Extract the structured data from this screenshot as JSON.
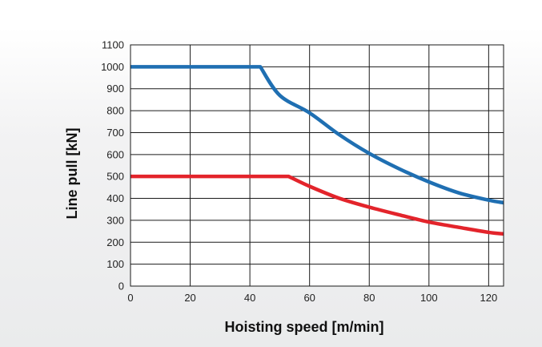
{
  "chart_data": {
    "type": "line",
    "title": "",
    "xlabel": "Hoisting speed [m/min]",
    "ylabel": "Line pull [kN]",
    "xlim": [
      0,
      125
    ],
    "ylim": [
      0,
      1100
    ],
    "x_ticks": [
      0,
      20,
      40,
      60,
      80,
      100,
      120
    ],
    "y_ticks": [
      0,
      100,
      200,
      300,
      400,
      500,
      600,
      700,
      800,
      900,
      1000,
      1100
    ],
    "grid": true,
    "legend": "none",
    "series": [
      {
        "color": "#1f6fb2",
        "x": [
          0,
          43.5,
          50,
          60,
          70,
          80,
          90,
          100,
          110,
          120,
          125
        ],
        "y": [
          1000,
          1000,
          870,
          790,
          690,
          605,
          535,
          475,
          425,
          392,
          380
        ]
      },
      {
        "color": "#e3242b",
        "x": [
          0,
          53,
          60,
          70,
          80,
          90,
          100,
          110,
          120,
          125
        ],
        "y": [
          500,
          500,
          455,
          400,
          360,
          325,
          292,
          268,
          245,
          238
        ]
      }
    ]
  }
}
